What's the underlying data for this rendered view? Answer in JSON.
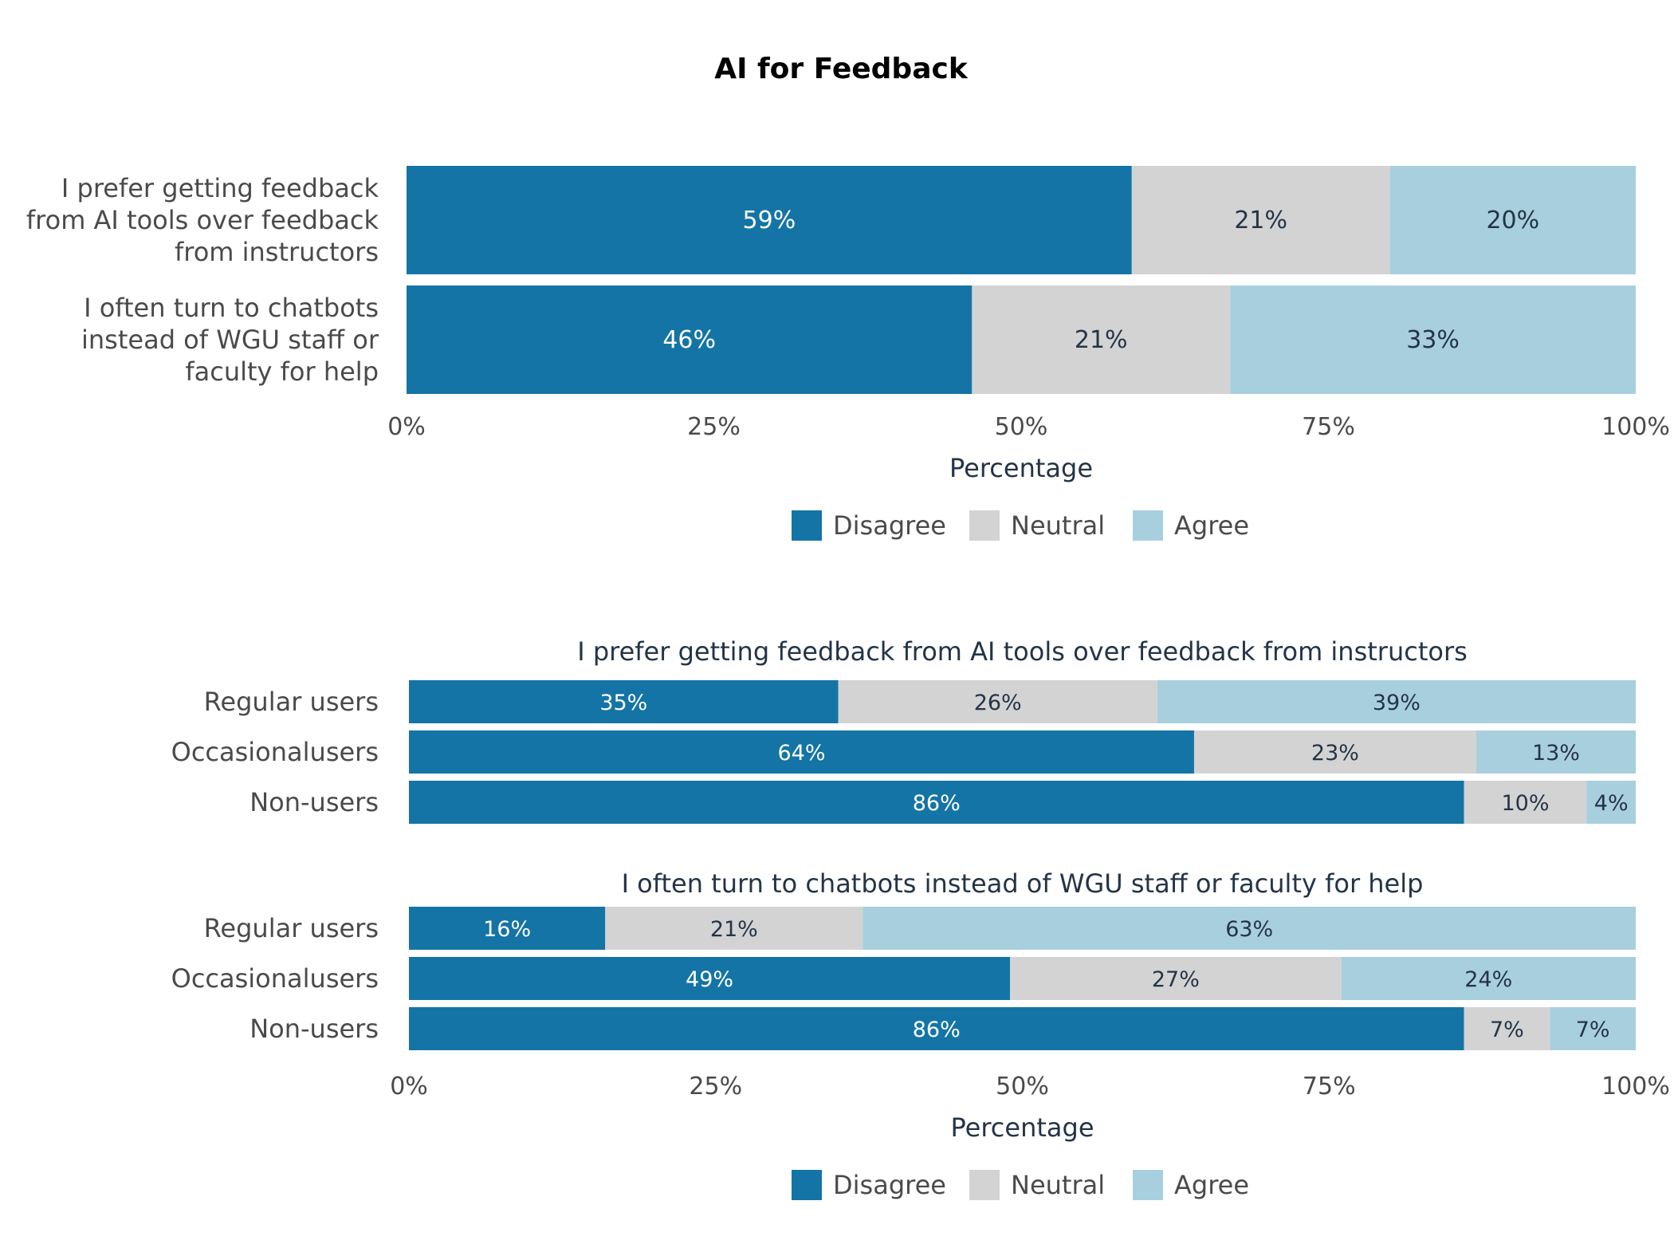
{
  "colors": {
    "Disagree": "#1474a6",
    "Neutral": "#d3d3d3",
    "Agree": "#a8cfde"
  },
  "chart_data": [
    {
      "type": "bar",
      "orientation": "horizontal",
      "stacked": true,
      "title": "AI for Feedback",
      "xlabel": "Percentage",
      "xlim": [
        0,
        100
      ],
      "xticks": [
        "0%",
        "25%",
        "50%",
        "75%",
        "100%"
      ],
      "legend": [
        "Disagree",
        "Neutral",
        "Agree"
      ],
      "legend_position": "bottom",
      "categories": [
        [
          "I prefer getting feedback",
          "from AI tools over feedback",
          "from instructors"
        ],
        [
          "I often turn to chatbots",
          "instead of WGU staff or",
          "faculty for help"
        ]
      ],
      "series": [
        {
          "name": "Disagree",
          "values": [
            59,
            46
          ]
        },
        {
          "name": "Neutral",
          "values": [
            21,
            21
          ]
        },
        {
          "name": "Agree",
          "values": [
            20,
            33
          ]
        }
      ]
    },
    {
      "type": "bar",
      "orientation": "horizontal",
      "stacked": true,
      "xlabel": "Percentage",
      "xlim": [
        0,
        100
      ],
      "xticks": [
        "0%",
        "25%",
        "50%",
        "75%",
        "100%"
      ],
      "legend": [
        "Disagree",
        "Neutral",
        "Agree"
      ],
      "legend_position": "bottom",
      "panels": [
        {
          "title": "I prefer getting feedback from AI tools over feedback from instructors",
          "categories": [
            "Regular users",
            "Occasionalusers",
            "Non-users"
          ],
          "series": [
            {
              "name": "Disagree",
              "values": [
                35,
                64,
                86
              ]
            },
            {
              "name": "Neutral",
              "values": [
                26,
                23,
                10
              ]
            },
            {
              "name": "Agree",
              "values": [
                39,
                13,
                4
              ]
            }
          ]
        },
        {
          "title": "I often turn to chatbots instead of WGU staff or faculty for help",
          "categories": [
            "Regular users",
            "Occasionalusers",
            "Non-users"
          ],
          "series": [
            {
              "name": "Disagree",
              "values": [
                16,
                49,
                86
              ]
            },
            {
              "name": "Neutral",
              "values": [
                21,
                27,
                7
              ]
            },
            {
              "name": "Agree",
              "values": [
                63,
                24,
                7
              ]
            }
          ]
        }
      ]
    }
  ]
}
